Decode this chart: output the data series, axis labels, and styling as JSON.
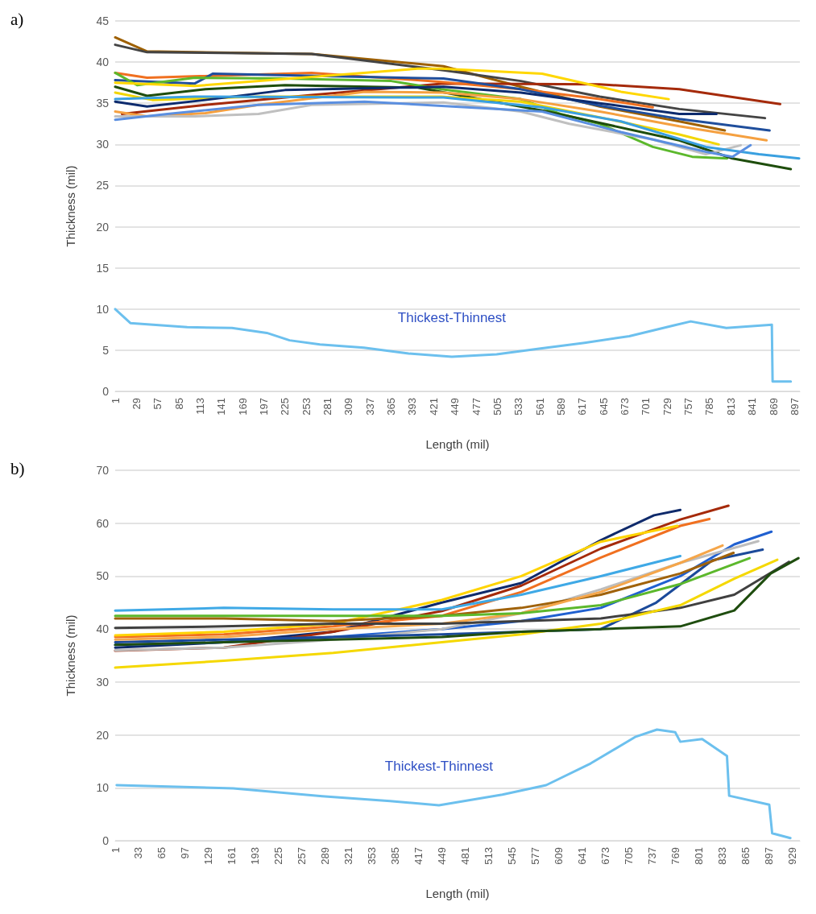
{
  "chart_data": [
    {
      "type": "line",
      "title": "a)",
      "xlabel": "Length (mil)",
      "ylabel": "Thickness (mil)",
      "xlim": [
        1,
        904
      ],
      "ylim": [
        0,
        45
      ],
      "yticks": [
        0,
        5,
        10,
        15,
        20,
        25,
        30,
        35,
        40,
        45
      ],
      "xticks": [
        1,
        29,
        57,
        85,
        113,
        141,
        169,
        197,
        225,
        253,
        281,
        309,
        337,
        365,
        393,
        421,
        449,
        477,
        505,
        533,
        561,
        589,
        617,
        645,
        673,
        701,
        729,
        757,
        785,
        813,
        841,
        869,
        897
      ],
      "grid": "y",
      "series": [
        {
          "color": "#9e6000",
          "x": [
            1,
            43,
            260,
            434,
            536,
            640,
            745,
            805
          ],
          "values": [
            43,
            41.3,
            41,
            39.5,
            37,
            34.6,
            32.8,
            31.7
          ]
        },
        {
          "color": "#444444",
          "x": [
            1,
            43,
            260,
            434,
            536,
            640,
            745,
            858
          ],
          "values": [
            42.1,
            41.2,
            41,
            39,
            37.7,
            35.8,
            34.3,
            33.2
          ]
        },
        {
          "color": "#a52a0a",
          "x": [
            10,
            120,
            260,
            434,
            640,
            745,
            878
          ],
          "values": [
            33.7,
            34.8,
            36,
            37.4,
            37.3,
            36.7,
            34.9
          ]
        },
        {
          "color": "#f07020",
          "x": [
            1,
            43,
            260,
            431,
            536,
            640,
            710
          ],
          "values": [
            38.7,
            38.1,
            38.7,
            37.6,
            36.7,
            35.5,
            34.5
          ]
        },
        {
          "color": "#1f4e9c",
          "x": [
            1,
            106,
            130,
            434,
            536,
            640,
            745,
            864
          ],
          "values": [
            37.8,
            37.4,
            38.6,
            38,
            36.7,
            34.7,
            33.1,
            31.7
          ]
        },
        {
          "color": "#5cb82c",
          "x": [
            1,
            30,
            106,
            225,
            365,
            431,
            536,
            588,
            640,
            710,
            762,
            808
          ],
          "values": [
            38.7,
            37.2,
            38.1,
            38,
            37.7,
            36.7,
            35.5,
            33.7,
            32.5,
            29.7,
            28.5,
            28.3
          ]
        },
        {
          "color": "#ffd700",
          "x": [
            1,
            106,
            400,
            431,
            564,
            626,
            668,
            731
          ],
          "values": [
            37.5,
            37.1,
            39.2,
            39.2,
            38.6,
            37.3,
            36.4,
            35.5
          ]
        },
        {
          "color": "#1e4d0c",
          "x": [
            1,
            43,
            120,
            225,
            400,
            571,
            745,
            815,
            892
          ],
          "values": [
            37,
            35.9,
            36.7,
            37.2,
            36.9,
            34,
            30.5,
            28.3,
            27
          ]
        },
        {
          "color": "#f2d600",
          "x": [
            1,
            50,
            190,
            431,
            536,
            640,
            745,
            797
          ],
          "values": [
            36.3,
            35.4,
            35.8,
            35.8,
            35.2,
            33.3,
            31.2,
            30
          ]
        },
        {
          "color": "#0d2b6e",
          "x": [
            1,
            43,
            120,
            225,
            434,
            536,
            640,
            745,
            794
          ],
          "values": [
            35.2,
            34.6,
            35.4,
            36.6,
            37,
            36.3,
            35,
            33.7,
            33.7
          ]
        },
        {
          "color": "#f5a040",
          "x": [
            1,
            43,
            120,
            190,
            330,
            434,
            536,
            640,
            745,
            860
          ],
          "values": [
            34,
            33.4,
            33.8,
            34.8,
            36.4,
            36.3,
            35.5,
            34,
            32.2,
            30.5
          ]
        },
        {
          "color": "#c0c0c0",
          "x": [
            1,
            106,
            190,
            260,
            434,
            536,
            600,
            710,
            780,
            826
          ],
          "values": [
            33.4,
            33.4,
            33.7,
            34.8,
            35.1,
            34,
            32.5,
            30.6,
            28.8,
            29.9
          ]
        },
        {
          "color": "#3aa0e0",
          "x": [
            1,
            106,
            434,
            564,
            668,
            780,
            850,
            903
          ],
          "values": [
            35.5,
            35.8,
            35.7,
            34.5,
            32.8,
            29.7,
            28.8,
            28.3
          ]
        },
        {
          "color": "#5b8fe0",
          "x": [
            1,
            70,
            190,
            330,
            564,
            668,
            780,
            815,
            839
          ],
          "values": [
            33,
            33.7,
            34.8,
            35.2,
            34,
            31.5,
            29.1,
            28.5,
            29.9
          ]
        },
        {
          "name": "Thickest-Thinnest",
          "color": "#6cc0ee",
          "x": [
            1,
            21,
            96,
            155,
            201,
            231,
            271,
            329,
            388,
            445,
            504,
            562,
            620,
            679,
            737,
            760,
            807,
            867,
            868,
            892
          ],
          "values": [
            10,
            8.3,
            7.8,
            7.7,
            7.1,
            6.2,
            5.7,
            5.3,
            4.6,
            4.2,
            4.5,
            5.2,
            5.9,
            6.7,
            8,
            8.5,
            7.7,
            8.1,
            1.2,
            1.2
          ]
        }
      ]
    },
    {
      "type": "line",
      "title": "b)",
      "xlabel": "Length (mil)",
      "ylabel": "Thickness (mil)",
      "xlim": [
        1,
        940
      ],
      "ylim": [
        0,
        70
      ],
      "yticks": [
        0,
        10,
        20,
        30,
        40,
        50,
        60,
        70
      ],
      "xticks": [
        1,
        33,
        65,
        97,
        129,
        161,
        193,
        225,
        257,
        289,
        321,
        353,
        385,
        417,
        449,
        481,
        513,
        545,
        577,
        609,
        641,
        673,
        705,
        737,
        769,
        801,
        833,
        865,
        897,
        929
      ],
      "grid": "y",
      "series": [
        {
          "color": "#0f2a6b",
          "x": [
            1,
            150,
            300,
            449,
            558,
            667,
            740,
            776
          ],
          "values": [
            36.5,
            37.5,
            39.5,
            45,
            48.7,
            56.8,
            61.5,
            62.5
          ]
        },
        {
          "color": "#a52a0a",
          "x": [
            1,
            150,
            300,
            449,
            558,
            667,
            776,
            842
          ],
          "values": [
            35.9,
            36.5,
            39.5,
            43.4,
            48.2,
            55.2,
            60.7,
            63.3
          ]
        },
        {
          "color": "#f07020",
          "x": [
            1,
            150,
            300,
            449,
            558,
            667,
            776,
            816
          ],
          "values": [
            38.5,
            39,
            40.5,
            42.5,
            47,
            53.5,
            59.5,
            60.8
          ]
        },
        {
          "color": "#ffd400",
          "x": [
            1,
            150,
            300,
            449,
            558,
            667,
            772
          ],
          "values": [
            38.8,
            39.5,
            41,
            45.5,
            50,
            56.5,
            59.5
          ]
        },
        {
          "color": "#2060d0",
          "x": [
            1,
            150,
            300,
            449,
            558,
            667,
            776,
            850,
            901
          ],
          "values": [
            37,
            37.5,
            38.5,
            40,
            41.5,
            44,
            50,
            56,
            58.4
          ]
        },
        {
          "color": "#bdbdbd",
          "x": [
            1,
            150,
            300,
            449,
            558,
            667,
            776,
            883
          ],
          "values": [
            36,
            36.5,
            38,
            40,
            43,
            47.5,
            52.5,
            56.6
          ]
        },
        {
          "color": "#1b4a9a",
          "x": [
            1,
            150,
            300,
            449,
            558,
            667,
            743,
            820,
            889
          ],
          "values": [
            37.5,
            38,
            38.5,
            39,
            39.5,
            40,
            45,
            53,
            55
          ]
        },
        {
          "color": "#a0620a",
          "x": [
            1,
            150,
            300,
            449,
            558,
            667,
            776,
            849
          ],
          "values": [
            42,
            42,
            41.5,
            42.5,
            44,
            46.5,
            50.5,
            54.4
          ]
        },
        {
          "color": "#3fa9e6",
          "x": [
            1,
            150,
            300,
            449,
            558,
            667,
            776
          ],
          "values": [
            43.5,
            44,
            43.7,
            43.7,
            46.5,
            50,
            53.8
          ]
        },
        {
          "color": "#f5a64a",
          "x": [
            1,
            150,
            300,
            449,
            558,
            667,
            776,
            834
          ],
          "values": [
            38,
            38.5,
            40,
            41,
            43,
            47,
            52.5,
            55.8
          ]
        },
        {
          "color": "#5cb82c",
          "x": [
            1,
            150,
            300,
            449,
            558,
            667,
            776,
            871
          ],
          "values": [
            42.5,
            42.5,
            42.5,
            42.5,
            43,
            44.5,
            48.5,
            53.4
          ]
        },
        {
          "color": "#404040",
          "x": [
            1,
            150,
            300,
            449,
            558,
            667,
            776,
            850,
            925
          ],
          "values": [
            40.2,
            40.5,
            41,
            41,
            41.5,
            42,
            44,
            46.5,
            52.7
          ]
        },
        {
          "color": "#f5d800",
          "x": [
            1,
            150,
            300,
            449,
            558,
            667,
            776,
            850,
            909
          ],
          "values": [
            32.7,
            34,
            35.5,
            37.5,
            39,
            41,
            44.5,
            49.5,
            53.1
          ]
        },
        {
          "color": "#1f4d0f",
          "x": [
            1,
            150,
            300,
            449,
            558,
            667,
            776,
            850,
            900,
            938
          ],
          "values": [
            37,
            37.5,
            38,
            38.5,
            39.5,
            40,
            40.5,
            43.5,
            50.5,
            53.4
          ]
        },
        {
          "name": "Thickest-Thinnest",
          "color": "#6cc0ee",
          "x": [
            3,
            163,
            285,
            378,
            445,
            532,
            592,
            653,
            714,
            744,
            769,
            776,
            806,
            840,
            843,
            898,
            902,
            927
          ],
          "values": [
            10.5,
            9.9,
            8.4,
            7.5,
            6.7,
            8.7,
            10.5,
            14.6,
            19.6,
            21,
            20.5,
            18.7,
            19.2,
            16,
            8.5,
            6.8,
            1.4,
            0.5
          ]
        }
      ]
    }
  ]
}
